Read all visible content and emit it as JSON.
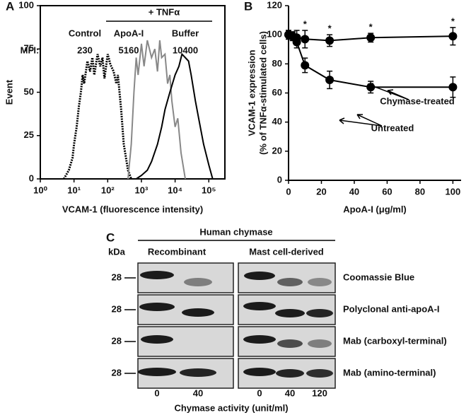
{
  "chart_data": [
    {
      "type": "line",
      "panel_label": "A",
      "ylabel": "Event",
      "xlabel": "VCAM-1 (fluorescence intensity)",
      "log_x": true,
      "xlim": [
        1,
        300000
      ],
      "ylim": [
        0,
        100
      ],
      "xticks": [
        {
          "value": 1,
          "label": "10⁰"
        },
        {
          "value": 10,
          "label": "10¹"
        },
        {
          "value": 100,
          "label": "10²"
        },
        {
          "value": 1000,
          "label": "10³"
        },
        {
          "value": 10000,
          "label": "10⁴"
        },
        {
          "value": 100000,
          "label": "10⁵"
        }
      ],
      "yticks": [
        0,
        25,
        50,
        75,
        100
      ],
      "annotations": [
        "+ TNFα",
        "MFI:",
        "230",
        "5160",
        "10400"
      ],
      "series": [
        {
          "name": "Control",
          "color": "#000000",
          "dashed": true,
          "x": [
            5,
            7,
            9,
            10,
            12,
            14,
            16,
            18,
            20,
            25,
            30,
            35,
            40,
            50,
            60,
            70,
            80,
            100,
            120,
            150,
            180,
            200,
            250,
            300,
            400,
            500
          ],
          "values": [
            0,
            5,
            12,
            20,
            30,
            42,
            50,
            60,
            55,
            68,
            62,
            70,
            60,
            72,
            65,
            70,
            58,
            72,
            66,
            62,
            55,
            60,
            40,
            20,
            5,
            0
          ]
        },
        {
          "name": "ApoA-I",
          "color": "#888888",
          "dashed": false,
          "x": [
            400,
            500,
            600,
            700,
            800,
            1000,
            1200,
            1500,
            2000,
            2500,
            3000,
            3500,
            4000,
            5000,
            6000,
            7000,
            8000,
            10000,
            12000,
            15000,
            20000
          ],
          "values": [
            0,
            20,
            50,
            70,
            60,
            78,
            65,
            80,
            70,
            75,
            62,
            80,
            70,
            72,
            55,
            60,
            45,
            30,
            35,
            15,
            0
          ]
        },
        {
          "name": "Buffer",
          "color": "#000000",
          "dashed": false,
          "x": [
            700,
            1000,
            1500,
            2000,
            3000,
            4000,
            5000,
            7000,
            10000,
            13000,
            16000,
            20000,
            25000,
            30000,
            40000,
            50000,
            70000,
            100000,
            130000
          ],
          "values": [
            0,
            2,
            5,
            10,
            20,
            30,
            40,
            50,
            60,
            65,
            72,
            70,
            68,
            60,
            45,
            35,
            20,
            8,
            0
          ]
        }
      ]
    },
    {
      "type": "errorline",
      "panel_label": "B",
      "ylabel": [
        "VCAM-1  expression",
        "(% of TNFα-stimulated cells)"
      ],
      "xlabel": "ApoA-I (μg/ml)",
      "xlim": [
        0,
        105
      ],
      "ylim": [
        0,
        120
      ],
      "xticks": [
        0,
        20,
        40,
        60,
        80,
        100
      ],
      "yticks": [
        0,
        20,
        40,
        60,
        80,
        100,
        120
      ],
      "x": [
        0,
        2.5,
        5,
        10,
        25,
        50,
        100
      ],
      "annotations": [
        "*",
        "*",
        "*",
        "*"
      ],
      "series": [
        {
          "name": "Chymase-treated",
          "color": "#000000",
          "values": [
            100,
            99,
            98,
            97,
            96,
            98,
            99
          ],
          "errors": [
            3,
            3,
            5,
            6,
            4,
            3,
            6
          ]
        },
        {
          "name": "Untreated",
          "color": "#000000",
          "values": [
            100,
            99,
            95,
            79,
            69,
            64,
            64
          ],
          "errors": [
            3,
            3,
            4,
            5,
            6,
            4,
            7
          ]
        }
      ]
    }
  ],
  "blot": {
    "panel_label": "C",
    "title": "Human chymase",
    "groups": [
      "Recombinant",
      "Mast cell-derived"
    ],
    "unit_label": "kDa",
    "rows": [
      {
        "marker": "28",
        "label": "Coomassie Blue"
      },
      {
        "marker": "28",
        "label": "Polyclonal anti-apoA-I"
      },
      {
        "marker": "28",
        "label": "Mab (carboxyl-terminal)"
      },
      {
        "marker": "28",
        "label": "Mab (amino-terminal)"
      }
    ],
    "lanes": [
      "0",
      "40",
      "0",
      "40",
      "120"
    ],
    "xlabel": "Chymase activity (unit/ml)"
  }
}
